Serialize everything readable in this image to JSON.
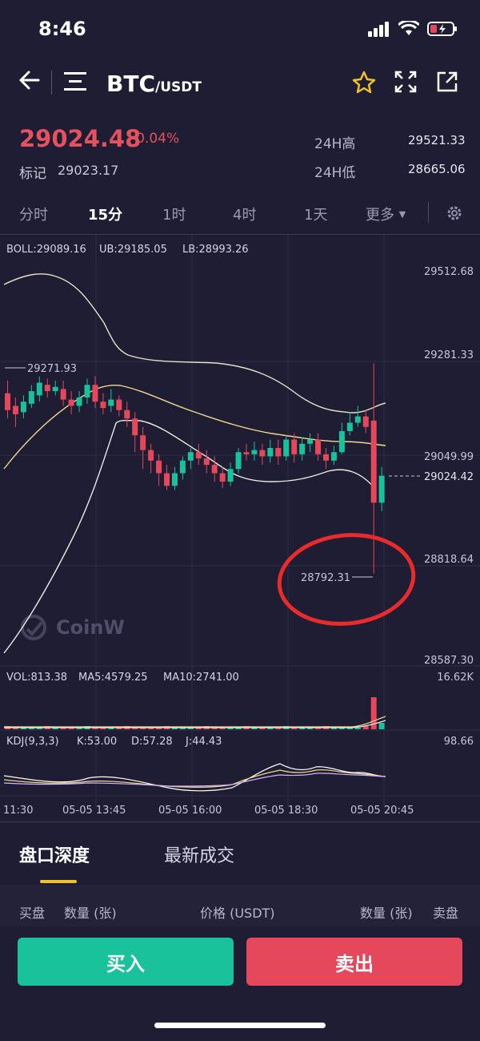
{
  "status": {
    "time": "8:46"
  },
  "header": {
    "pair": "BTC",
    "quote": "/USDT"
  },
  "ticker": {
    "price": "29024.48",
    "change": "-0.04%",
    "mark_label": "标记",
    "mark_value": "29023.17",
    "high_label": "24H高",
    "high_value": "29521.33",
    "low_label": "24H低",
    "low_value": "28665.06"
  },
  "tabs": [
    "分时",
    "15分",
    "1时",
    "4时",
    "1天",
    "更多"
  ],
  "chart": {
    "boll": "BOLL:29089.16",
    "ub": "UB:29185.05",
    "lb": "LB:28993.26",
    "price_axis": [
      "29512.68",
      "29281.33",
      "29049.99",
      "28818.64",
      "28587.30"
    ],
    "current_price": "29024.42",
    "high_marker": "29271.93",
    "low_marker": "28792.31",
    "watermark": "CoinW",
    "vol": "VOL:813.38",
    "ma5": "MA5:4579.25",
    "ma10": "MA10:2741.00",
    "vol_max": "16.62K",
    "kdj": "KDJ(9,3,3)",
    "k": "K:53.00",
    "d": "D:57.28",
    "j": "J:44.43",
    "kdj_max": "98.66",
    "time_axis": [
      "11:30",
      "05-05 13:45",
      "05-05 16:00",
      "05-05 18:30",
      "05-05 20:45"
    ]
  },
  "chart_data": {
    "type": "candlestick",
    "x_labels": [
      "11:30",
      "05-05 13:45",
      "05-05 16:00",
      "05-05 18:30",
      "05-05 20:45"
    ],
    "ylim": [
      28587.3,
      29512.68
    ],
    "y_ticks": [
      29512.68,
      29281.33,
      29049.99,
      28818.64,
      28587.3
    ],
    "candles": [
      [
        29220,
        29180,
        29250,
        29160
      ],
      [
        29190,
        29170,
        29210,
        29140
      ],
      [
        29175,
        29200,
        29215,
        29160
      ],
      [
        29195,
        29225,
        29240,
        29185
      ],
      [
        29215,
        29245,
        29260,
        29200
      ],
      [
        29240,
        29225,
        29255,
        29210
      ],
      [
        29225,
        29235,
        29250,
        29215
      ],
      [
        29230,
        29205,
        29250,
        29190
      ],
      [
        29205,
        29190,
        29225,
        29170
      ],
      [
        29190,
        29210,
        29225,
        29175
      ],
      [
        29210,
        29240,
        29255,
        29195
      ],
      [
        29240,
        29200,
        29260,
        29185
      ],
      [
        29200,
        29185,
        29220,
        29170
      ],
      [
        29190,
        29205,
        29230,
        29175
      ],
      [
        29205,
        29180,
        29215,
        29165
      ],
      [
        29180,
        29160,
        29200,
        29140
      ],
      [
        29160,
        29120,
        29175,
        29080
      ],
      [
        29120,
        29085,
        29140,
        29040
      ],
      [
        29085,
        29060,
        29100,
        29030
      ],
      [
        29060,
        29030,
        29075,
        29000
      ],
      [
        29030,
        29000,
        29050,
        28990
      ],
      [
        29000,
        29030,
        29045,
        28990
      ],
      [
        29030,
        29060,
        29070,
        29015
      ],
      [
        29060,
        29080,
        29090,
        29040
      ],
      [
        29080,
        29065,
        29100,
        29050
      ],
      [
        29065,
        29050,
        29085,
        29030
      ],
      [
        29050,
        29030,
        29070,
        29010
      ],
      [
        29030,
        29010,
        29045,
        28995
      ],
      [
        29010,
        29040,
        29055,
        29000
      ],
      [
        29040,
        29080,
        29090,
        29030
      ],
      [
        29080,
        29075,
        29100,
        29060
      ],
      [
        29075,
        29085,
        29105,
        29060
      ],
      [
        29085,
        29070,
        29100,
        29050
      ],
      [
        29070,
        29090,
        29110,
        29055
      ],
      [
        29090,
        29070,
        29110,
        29050
      ],
      [
        29070,
        29110,
        29120,
        29060
      ],
      [
        29110,
        29075,
        29125,
        29055
      ],
      [
        29075,
        29100,
        29115,
        29060
      ],
      [
        29100,
        29110,
        29125,
        29080
      ],
      [
        29110,
        29075,
        29125,
        29060
      ],
      [
        29075,
        29060,
        29090,
        29040
      ],
      [
        29060,
        29080,
        29095,
        29050
      ],
      [
        29080,
        29130,
        29150,
        29075
      ],
      [
        29130,
        29150,
        29175,
        29120
      ],
      [
        29150,
        29165,
        29190,
        29140
      ],
      [
        29165,
        29140,
        29180,
        29125
      ],
      [
        29155,
        28960,
        29291,
        28792
      ],
      [
        28960,
        29024,
        29045,
        28940
      ]
    ]
  },
  "depth_tabs": [
    "盘口深度",
    "最新成交"
  ],
  "orderbook_header": [
    "买盘",
    "数量 (张)",
    "价格 (USDT)",
    "数量 (张)",
    "卖盘"
  ],
  "actions": {
    "buy": "买入",
    "sell": "卖出"
  },
  "colors": {
    "up": "#19c29a",
    "down": "#e5485a",
    "accent": "#f0c227",
    "bg": "#1e1d33"
  }
}
